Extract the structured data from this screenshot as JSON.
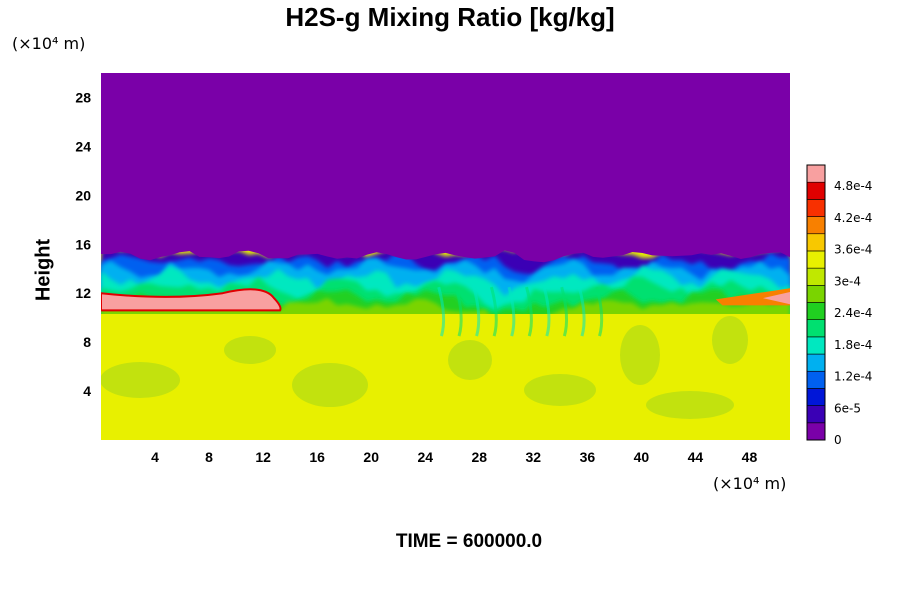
{
  "chart_data": {
    "type": "heatmap",
    "title": "H2S-g Mixing Ratio [kg/kg]",
    "ylabel": "Height",
    "x_unit": "(×10⁴ m)",
    "y_unit": "(×10⁴ m)",
    "xlim": [
      0,
      51
    ],
    "ylim": [
      0,
      30
    ],
    "x_ticks": [
      "4",
      "8",
      "12",
      "16",
      "20",
      "24",
      "28",
      "32",
      "36",
      "40",
      "44",
      "48"
    ],
    "y_ticks": [
      "4",
      "8",
      "12",
      "16",
      "20",
      "24",
      "28"
    ],
    "colorbar": {
      "range": [
        0,
        0.00052
      ],
      "tick_labels": [
        "0",
        "6e-5",
        "1.2e-4",
        "1.8e-4",
        "2.4e-4",
        "3e-4",
        "3.6e-4",
        "4.2e-4",
        "4.8e-4"
      ],
      "tick_values": [
        0,
        6e-05,
        0.00012,
        0.00018,
        0.00024,
        0.0003,
        0.00036,
        0.00042,
        0.00048
      ],
      "colors": [
        "#7a00a8",
        "#3a00b5",
        "#0016d8",
        "#0060f0",
        "#00b0f0",
        "#00e8c0",
        "#00e070",
        "#20d020",
        "#7ad400",
        "#c0e800",
        "#e8f000",
        "#f8c800",
        "#f88000",
        "#f83000",
        "#e00000",
        "#f8a0a0"
      ]
    },
    "regions": [
      {
        "description": "upper layer",
        "y_range": [
          15,
          30
        ],
        "value": 0
      },
      {
        "description": "lower layer",
        "y_range": [
          0,
          11
        ],
        "value": 0.00034
      },
      {
        "description": "high concentration band",
        "x_range": [
          0,
          14
        ],
        "y_range": [
          10.5,
          12.5
        ],
        "value": 0.0005
      }
    ]
  },
  "footer": {
    "time_label": "TIME = 600000.0"
  }
}
